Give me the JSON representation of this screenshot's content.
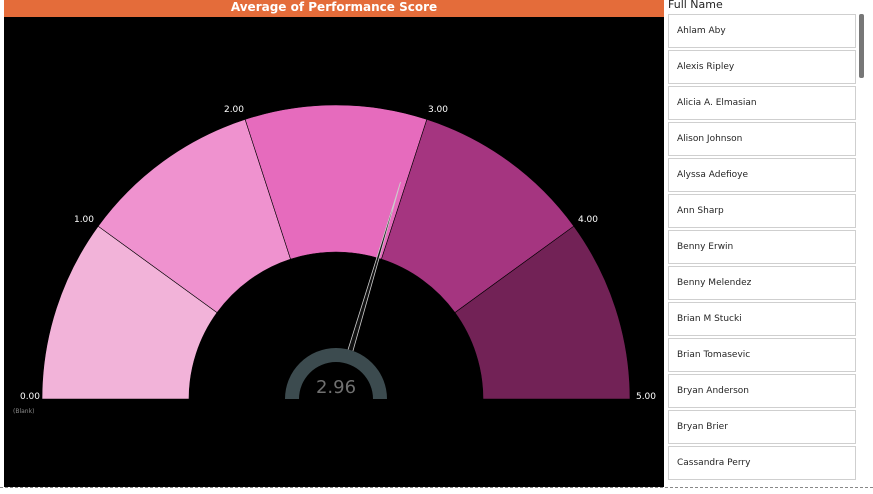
{
  "chart_data": {
    "type": "gauge",
    "title": "Average of Performance Score",
    "value": 2.96,
    "value_label": "2.96",
    "min": 0,
    "max": 5,
    "bands": [
      {
        "from": 0,
        "to": 1,
        "color": "#f2b3d9"
      },
      {
        "from": 1,
        "to": 2,
        "color": "#ef92cf"
      },
      {
        "from": 2,
        "to": 3,
        "color": "#e66bbd"
      },
      {
        "from": 3,
        "to": 4,
        "color": "#a53580"
      },
      {
        "from": 4,
        "to": 5,
        "color": "#722256"
      }
    ],
    "tick_labels": [
      "0.00",
      "1.00",
      "2.00",
      "3.00",
      "4.00",
      "5.00"
    ],
    "blank_label": "(Blank)"
  },
  "slicer": {
    "header": "Full Name",
    "items": [
      "Ahlam Aby",
      "Alexis Ripley",
      "Alicia A. Elmasian",
      "Alison Johnson",
      "Alyssa Adefioye",
      "Ann Sharp",
      "Benny Erwin",
      "Benny Melendez",
      "Brian M Stucki",
      "Brian Tomasevic",
      "Bryan Anderson",
      "Bryan Brier",
      "Cassandra Perry"
    ]
  }
}
